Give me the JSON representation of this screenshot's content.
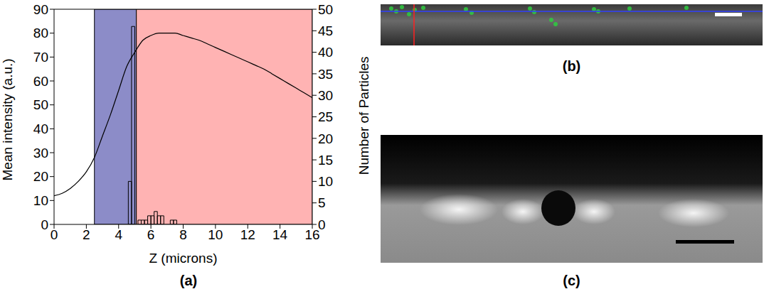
{
  "chart_data": {
    "type": "line",
    "caption": "(a)",
    "x_label": "Z (microns)",
    "y_label": "Mean intensity (a.u.)",
    "y2_label": "Number of Particles",
    "xlim": [
      0,
      16
    ],
    "xticks": [
      0,
      2,
      4,
      6,
      8,
      10,
      12,
      14,
      16
    ],
    "ylim": [
      0,
      90
    ],
    "yticks": [
      0,
      10,
      20,
      30,
      40,
      50,
      60,
      70,
      80,
      90
    ],
    "y2lim": [
      0,
      50
    ],
    "y2ticks": [
      0,
      5,
      10,
      15,
      20,
      25,
      30,
      35,
      40,
      45,
      50
    ],
    "regions": [
      {
        "x0": 2.5,
        "x1": 5.1,
        "color": "#8c8cc8"
      },
      {
        "x0": 5.1,
        "x1": 16,
        "color": "#ffb3b3"
      }
    ],
    "series": [
      {
        "type": "line",
        "color": "#000000",
        "x": [
          0,
          0.5,
          1,
          1.5,
          2,
          2.5,
          3,
          3.5,
          4,
          4.5,
          5,
          5.5,
          6,
          6.5,
          7,
          7.5,
          8,
          8.5,
          9,
          9.5,
          10,
          10.5,
          11,
          11.5,
          12,
          12.5,
          13,
          13.5,
          14,
          14.5,
          15,
          15.5,
          16
        ],
        "values": [
          12,
          13,
          15,
          18,
          22,
          28,
          37,
          46,
          56,
          66,
          72,
          77,
          79,
          80,
          80,
          80,
          79,
          78,
          77,
          75.5,
          74,
          72.5,
          71,
          69.5,
          68,
          66.5,
          65,
          63,
          61,
          59,
          57,
          55,
          53
        ]
      },
      {
        "type": "histogram",
        "axis": "y2",
        "color": "#000000",
        "bins": [
          4.6,
          4.8,
          5.0,
          5.2,
          5.4,
          5.6,
          5.8,
          6.0,
          6.2,
          6.4,
          6.6,
          6.8,
          7.0,
          7.2,
          7.4,
          7.6
        ],
        "values": [
          10,
          46,
          0,
          1,
          1,
          1,
          2,
          2,
          3,
          2,
          2,
          0,
          0,
          1,
          1
        ]
      }
    ]
  },
  "images": [
    {
      "label": "(b)"
    },
    {
      "label": "(c)"
    }
  ]
}
